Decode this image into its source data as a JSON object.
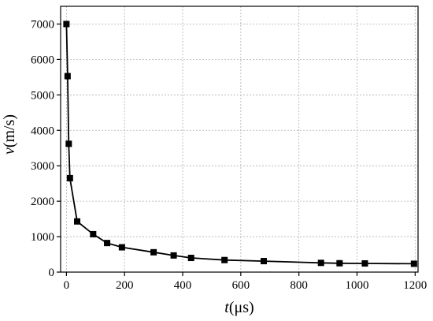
{
  "chart_data": {
    "type": "line",
    "x": [
      0,
      4,
      8,
      12,
      37,
      92,
      140,
      191,
      300,
      369,
      429,
      544,
      679,
      876,
      940,
      1027,
      1196
    ],
    "series": [
      {
        "values": [
          7000,
          5530,
          3620,
          2650,
          1430,
          1070,
          820,
          700,
          560,
          470,
          400,
          340,
          310,
          260,
          250,
          245,
          235
        ]
      }
    ],
    "xlabel": {
      "italic": "t",
      "rest": "(μs)"
    },
    "ylabel": {
      "italic": "v",
      "rest": "(m/s)"
    },
    "xlim": [
      -20,
      1210
    ],
    "ylim": [
      0,
      7500
    ],
    "xticks": [
      0,
      200,
      400,
      600,
      800,
      1000,
      1200
    ],
    "yticks": [
      0,
      1000,
      2000,
      3000,
      4000,
      5000,
      6000,
      7000
    ],
    "xtick_labels": [
      "0",
      "200",
      "400",
      "600",
      "800",
      "1000",
      "1200"
    ],
    "ytick_labels": [
      "0",
      "1000",
      "2000",
      "3000",
      "4000",
      "5000",
      "6000",
      "7000"
    ],
    "grid": true,
    "line_color": "#000000",
    "marker": "square",
    "marker_color": "#000000",
    "grid_color": "#b0b0b0"
  }
}
